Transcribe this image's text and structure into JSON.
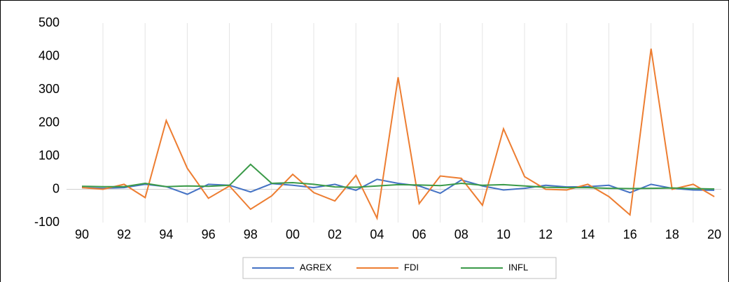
{
  "chart_data": {
    "type": "line",
    "categories": [
      "90",
      null,
      "92",
      null,
      "94",
      null,
      "96",
      null,
      "98",
      null,
      "00",
      null,
      "02",
      null,
      "04",
      null,
      "06",
      null,
      "08",
      null,
      "10",
      null,
      "12",
      null,
      "14",
      null,
      "16",
      null,
      "18",
      null,
      "20"
    ],
    "ylim": [
      -100,
      500
    ],
    "yticks": [
      -100,
      0,
      100,
      200,
      300,
      400,
      500
    ],
    "grid": true,
    "series": [
      {
        "name": "AGREX",
        "color": "#4472c4",
        "values": [
          5,
          3,
          5,
          15,
          8,
          -15,
          15,
          12,
          -8,
          17,
          12,
          5,
          15,
          -3,
          30,
          18,
          10,
          -12,
          28,
          10,
          -2,
          3,
          12,
          7,
          8,
          12,
          -10,
          15,
          3,
          -2,
          -3
        ]
      },
      {
        "name": "FDI",
        "color": "#ed7d31",
        "values": [
          5,
          0,
          15,
          -25,
          207,
          63,
          -27,
          10,
          -60,
          -20,
          45,
          -10,
          -35,
          42,
          -87,
          337,
          -43,
          40,
          33,
          -48,
          182,
          38,
          0,
          -2,
          15,
          -22,
          -77,
          423,
          0,
          15,
          -22
        ]
      },
      {
        "name": "INFL",
        "color": "#3a9a48",
        "values": [
          9,
          8,
          8,
          18,
          8,
          10,
          9,
          12,
          75,
          18,
          20,
          15,
          7,
          6,
          10,
          14,
          13,
          11,
          18,
          12,
          14,
          10,
          6,
          5,
          5,
          3,
          2,
          3,
          4,
          2,
          1
        ]
      }
    ]
  }
}
